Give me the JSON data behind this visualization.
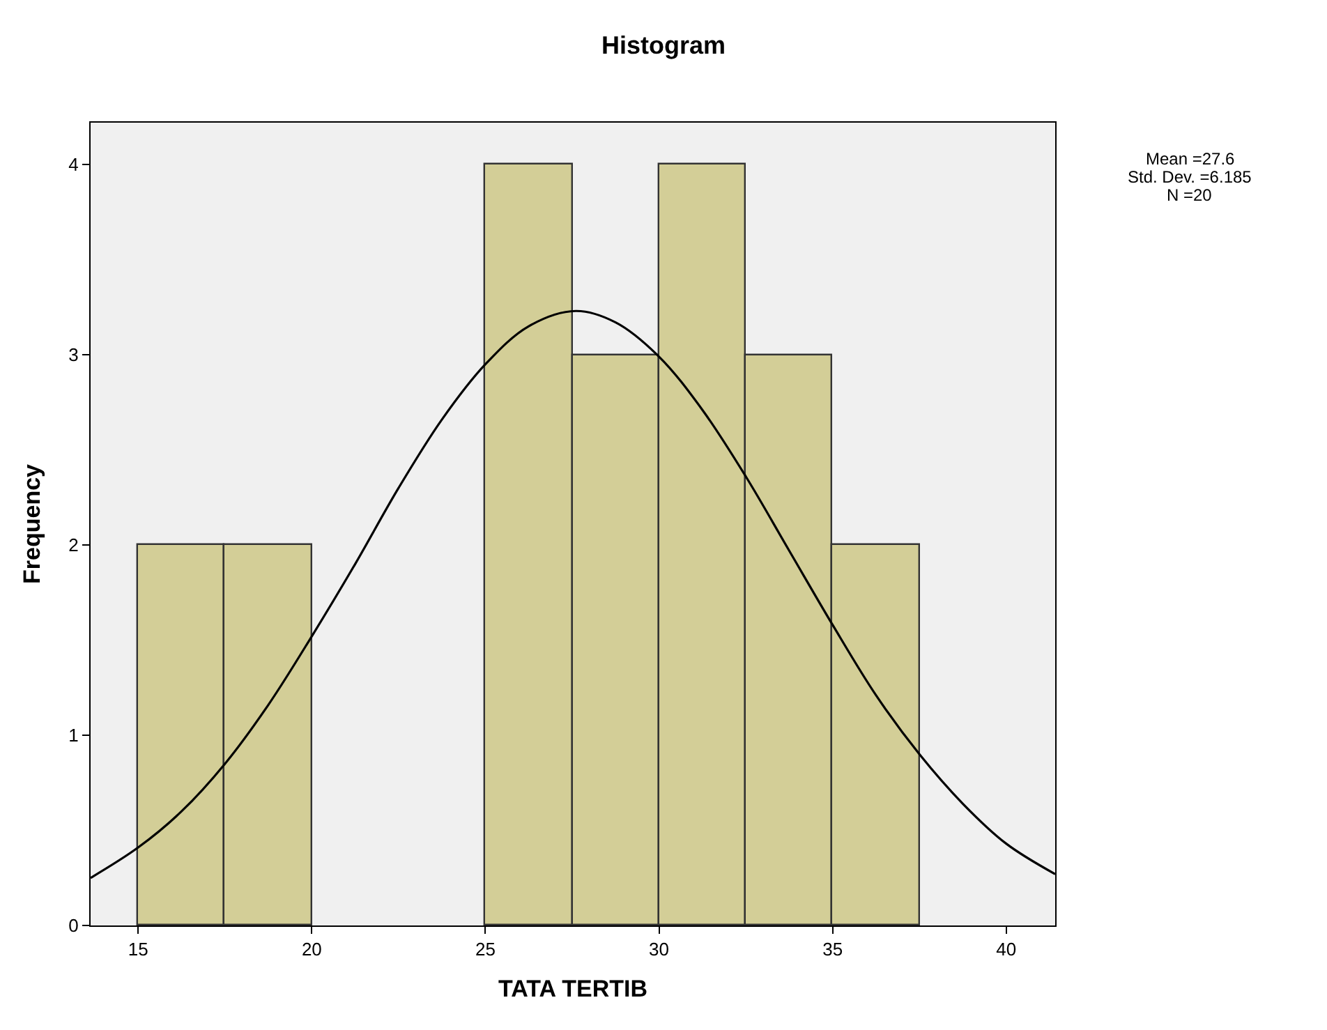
{
  "chart_data": {
    "type": "histogram",
    "title": "Histogram",
    "xlabel": "TATA TERTIB",
    "ylabel": "Frequency",
    "series": [
      {
        "color": "#d3ce97",
        "bins": [
          15,
          17.5,
          20,
          22.5,
          25,
          27.5,
          30,
          32.5,
          35,
          37.5
        ],
        "values": [
          2,
          2,
          0,
          0,
          4,
          3,
          4,
          3,
          2
        ]
      },
      {
        "type": "line",
        "color": "#000000",
        "x": [
          13.63,
          15,
          16.25,
          17.5,
          18.75,
          20,
          21.25,
          22.5,
          23.75,
          25,
          26.25,
          27.6,
          28.75,
          30,
          31.25,
          32.5,
          33.75,
          35,
          36.25,
          37.5,
          38.75,
          40,
          41.41
        ],
        "values": [
          0.25,
          0.41,
          0.6,
          0.85,
          1.16,
          1.52,
          1.9,
          2.3,
          2.66,
          2.95,
          3.15,
          3.23,
          3.17,
          2.99,
          2.71,
          2.36,
          1.97,
          1.58,
          1.21,
          0.9,
          0.64,
          0.43,
          0.27
        ]
      }
    ],
    "xlim": [
      13.63,
      41.41
    ],
    "ylim": [
      0,
      4.22
    ],
    "xticks": [
      15,
      20,
      25,
      30,
      35,
      40
    ],
    "yticks": [
      0,
      1,
      2,
      3,
      4
    ],
    "grid": false,
    "marker": "none",
    "line_style": "solid",
    "annotations": [
      "Mean =27.6",
      "Std. Dev. =6.185",
      "N =20"
    ]
  }
}
